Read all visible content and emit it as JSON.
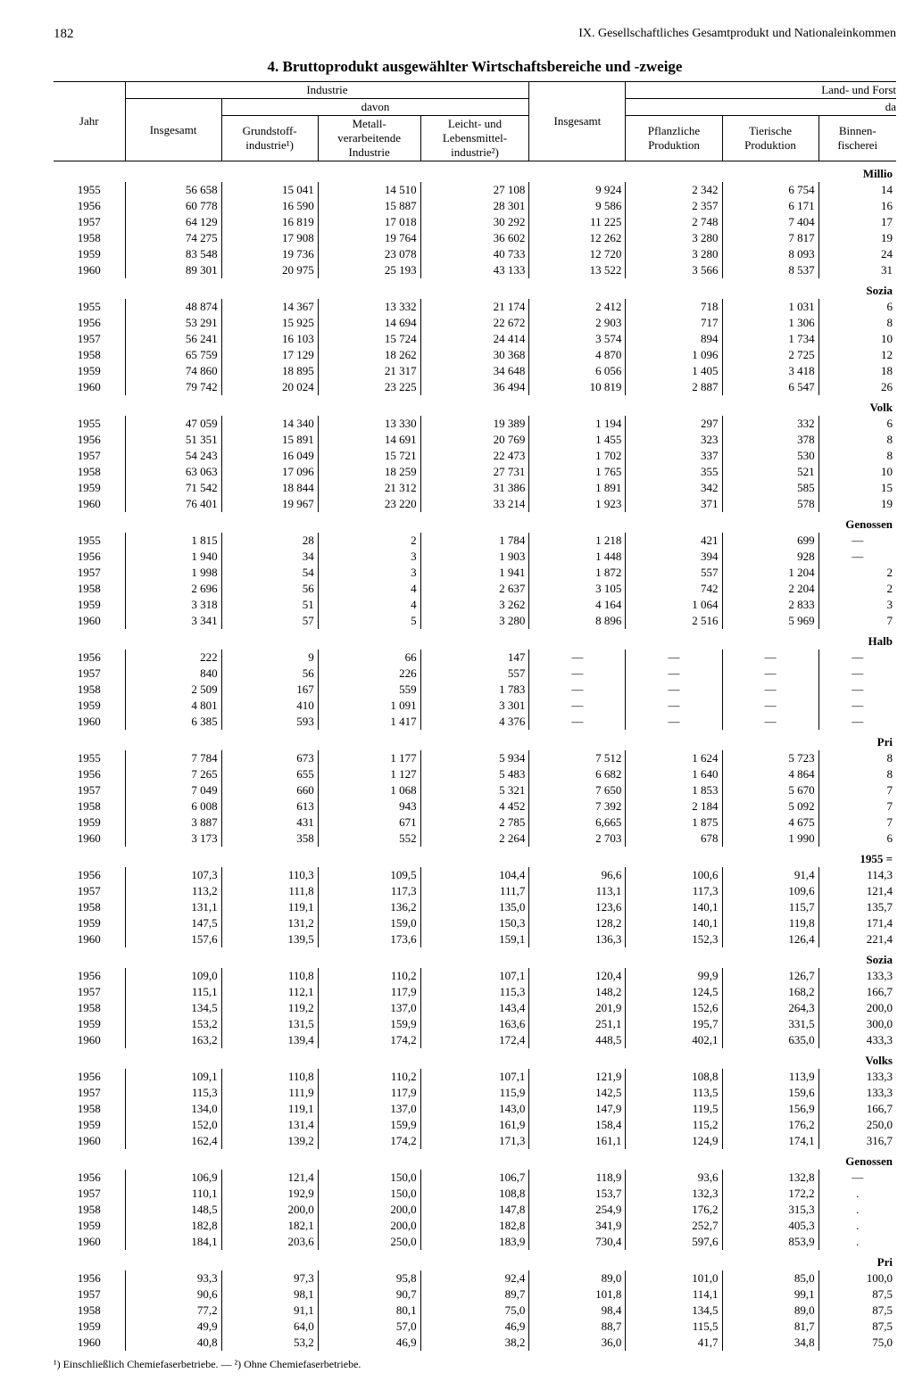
{
  "page_number": "182",
  "header_chapter": "IX. Gesellschaftliches Gesamtprodukt und Nationaleinkommen",
  "title": "4. Bruttoprodukt ausgewählter Wirtschaftsbereiche und -zweige",
  "footnote": "¹) Einschließlich Chemiefaserbetriebe. — ²) Ohne Chemiefaserbetriebe.",
  "col_headers": {
    "jahr": "Jahr",
    "industrie": "Industrie",
    "davon": "davon",
    "insgesamt": "Insgesamt",
    "grundstoff": "Grundstoff-\nindustrie¹)",
    "metall": "Metall-\nverarbeitende\nIndustrie",
    "leicht": "Leicht- und\nLebensmittel-\nindustrie²)",
    "land_forst": "Land- und Forst",
    "da": "da",
    "pflanzliche": "Pflanzliche\nProduktion",
    "tierische": "Tierische\nProduktion",
    "binnen": "Binnen-\nfischerei"
  },
  "section_right": {
    "millio": "Millio",
    "sozia": "Sozia",
    "volk": "Volk",
    "genossen": "Genossen",
    "halb": "Halb",
    "pri": "Pri",
    "base1955": "1955 =",
    "sozia2": "Sozia",
    "volks": "Volks",
    "genossen2": "Genossen",
    "pri2": "Pri"
  },
  "blocks": [
    {
      "label": "millio",
      "rows": [
        [
          "1955",
          "56 658",
          "15 041",
          "14 510",
          "27 108",
          "9 924",
          "2 342",
          "6 754",
          "14"
        ],
        [
          "1956",
          "60 778",
          "16 590",
          "15 887",
          "28 301",
          "9 586",
          "2 357",
          "6 171",
          "16"
        ],
        [
          "1957",
          "64 129",
          "16 819",
          "17 018",
          "30 292",
          "11 225",
          "2 748",
          "7 404",
          "17"
        ],
        [
          "1958",
          "74 275",
          "17 908",
          "19 764",
          "36 602",
          "12 262",
          "3 280",
          "7 817",
          "19"
        ],
        [
          "1959",
          "83 548",
          "19 736",
          "23 078",
          "40 733",
          "12 720",
          "3 280",
          "8 093",
          "24"
        ],
        [
          "1960",
          "89 301",
          "20 975",
          "25 193",
          "43 133",
          "13 522",
          "3 566",
          "8 537",
          "31"
        ]
      ]
    },
    {
      "label": "sozia",
      "rows": [
        [
          "1955",
          "48 874",
          "14 367",
          "13 332",
          "21 174",
          "2 412",
          "718",
          "1 031",
          "6"
        ],
        [
          "1956",
          "53 291",
          "15 925",
          "14 694",
          "22 672",
          "2 903",
          "717",
          "1 306",
          "8"
        ],
        [
          "1957",
          "56 241",
          "16 103",
          "15 724",
          "24 414",
          "3 574",
          "894",
          "1 734",
          "10"
        ],
        [
          "1958",
          "65 759",
          "17 129",
          "18 262",
          "30 368",
          "4 870",
          "1 096",
          "2 725",
          "12"
        ],
        [
          "1959",
          "74 860",
          "18 895",
          "21 317",
          "34 648",
          "6 056",
          "1 405",
          "3 418",
          "18"
        ],
        [
          "1960",
          "79 742",
          "20 024",
          "23 225",
          "36 494",
          "10 819",
          "2 887",
          "6 547",
          "26"
        ]
      ]
    },
    {
      "label": "volk",
      "rows": [
        [
          "1955",
          "47 059",
          "14 340",
          "13 330",
          "19 389",
          "1 194",
          "297",
          "332",
          "6"
        ],
        [
          "1956",
          "51 351",
          "15 891",
          "14 691",
          "20 769",
          "1 455",
          "323",
          "378",
          "8"
        ],
        [
          "1957",
          "54 243",
          "16 049",
          "15 721",
          "22 473",
          "1 702",
          "337",
          "530",
          "8"
        ],
        [
          "1958",
          "63 063",
          "17 096",
          "18 259",
          "27 731",
          "1 765",
          "355",
          "521",
          "10"
        ],
        [
          "1959",
          "71 542",
          "18 844",
          "21 312",
          "31 386",
          "1 891",
          "342",
          "585",
          "15"
        ],
        [
          "1960",
          "76 401",
          "19 967",
          "23 220",
          "33 214",
          "1 923",
          "371",
          "578",
          "19"
        ]
      ]
    },
    {
      "label": "genossen",
      "rows": [
        [
          "1955",
          "1 815",
          "28",
          "2",
          "1 784",
          "1 218",
          "421",
          "699",
          "—"
        ],
        [
          "1956",
          "1 940",
          "34",
          "3",
          "1 903",
          "1 448",
          "394",
          "928",
          "—"
        ],
        [
          "1957",
          "1 998",
          "54",
          "3",
          "1 941",
          "1 872",
          "557",
          "1 204",
          "2"
        ],
        [
          "1958",
          "2 696",
          "56",
          "4",
          "2 637",
          "3 105",
          "742",
          "2 204",
          "2"
        ],
        [
          "1959",
          "3 318",
          "51",
          "4",
          "3 262",
          "4 164",
          "1 064",
          "2 833",
          "3"
        ],
        [
          "1960",
          "3 341",
          "57",
          "5",
          "3 280",
          "8 896",
          "2 516",
          "5 969",
          "7"
        ]
      ]
    },
    {
      "label": "halb",
      "rows": [
        [
          "1956",
          "222",
          "9",
          "66",
          "147",
          "—",
          "—",
          "—",
          "—"
        ],
        [
          "1957",
          "840",
          "56",
          "226",
          "557",
          "—",
          "—",
          "—",
          "—"
        ],
        [
          "1958",
          "2 509",
          "167",
          "559",
          "1 783",
          "—",
          "—",
          "—",
          "—"
        ],
        [
          "1959",
          "4 801",
          "410",
          "1 091",
          "3 301",
          "—",
          "—",
          "—",
          "—"
        ],
        [
          "1960",
          "6 385",
          "593",
          "1 417",
          "4 376",
          "—",
          "—",
          "—",
          "—"
        ]
      ]
    },
    {
      "label": "pri",
      "rows": [
        [
          "1955",
          "7 784",
          "673",
          "1 177",
          "5 934",
          "7 512",
          "1 624",
          "5 723",
          "8"
        ],
        [
          "1956",
          "7 265",
          "655",
          "1 127",
          "5 483",
          "6 682",
          "1 640",
          "4 864",
          "8"
        ],
        [
          "1957",
          "7 049",
          "660",
          "1 068",
          "5 321",
          "7 650",
          "1 853",
          "5 670",
          "7"
        ],
        [
          "1958",
          "6 008",
          "613",
          "943",
          "4 452",
          "7 392",
          "2 184",
          "5 092",
          "7"
        ],
        [
          "1959",
          "3 887",
          "431",
          "671",
          "2 785",
          "6,665",
          "1 875",
          "4 675",
          "7"
        ],
        [
          "1960",
          "3 173",
          "358",
          "552",
          "2 264",
          "2 703",
          "678",
          "1 990",
          "6"
        ]
      ]
    },
    {
      "label": "base1955",
      "rows": [
        [
          "1956",
          "107,3",
          "110,3",
          "109,5",
          "104,4",
          "96,6",
          "100,6",
          "91,4",
          "114,3"
        ],
        [
          "1957",
          "113,2",
          "111,8",
          "117,3",
          "111,7",
          "113,1",
          "117,3",
          "109,6",
          "121,4"
        ],
        [
          "1958",
          "131,1",
          "119,1",
          "136,2",
          "135,0",
          "123,6",
          "140,1",
          "115,7",
          "135,7"
        ],
        [
          "1959",
          "147,5",
          "131,2",
          "159,0",
          "150,3",
          "128,2",
          "140,1",
          "119,8",
          "171,4"
        ],
        [
          "1960",
          "157,6",
          "139,5",
          "173,6",
          "159,1",
          "136,3",
          "152,3",
          "126,4",
          "221,4"
        ]
      ]
    },
    {
      "label": "sozia2",
      "rows": [
        [
          "1956",
          "109,0",
          "110,8",
          "110,2",
          "107,1",
          "120,4",
          "99,9",
          "126,7",
          "133,3"
        ],
        [
          "1957",
          "115,1",
          "112,1",
          "117,9",
          "115,3",
          "148,2",
          "124,5",
          "168,2",
          "166,7"
        ],
        [
          "1958",
          "134,5",
          "119,2",
          "137,0",
          "143,4",
          "201,9",
          "152,6",
          "264,3",
          "200,0"
        ],
        [
          "1959",
          "153,2",
          "131,5",
          "159,9",
          "163,6",
          "251,1",
          "195,7",
          "331,5",
          "300,0"
        ],
        [
          "1960",
          "163,2",
          "139,4",
          "174,2",
          "172,4",
          "448,5",
          "402,1",
          "635,0",
          "433,3"
        ]
      ]
    },
    {
      "label": "volks",
      "rows": [
        [
          "1956",
          "109,1",
          "110,8",
          "110,2",
          "107,1",
          "121,9",
          "108,8",
          "113,9",
          "133,3"
        ],
        [
          "1957",
          "115,3",
          "111,9",
          "117,9",
          "115,9",
          "142,5",
          "113,5",
          "159,6",
          "133,3"
        ],
        [
          "1958",
          "134,0",
          "119,1",
          "137,0",
          "143,0",
          "147,9",
          "119,5",
          "156,9",
          "166,7"
        ],
        [
          "1959",
          "152,0",
          "131,4",
          "159,9",
          "161,9",
          "158,4",
          "115,2",
          "176,2",
          "250,0"
        ],
        [
          "1960",
          "162,4",
          "139,2",
          "174,2",
          "171,3",
          "161,1",
          "124,9",
          "174,1",
          "316,7"
        ]
      ]
    },
    {
      "label": "genossen2",
      "rows": [
        [
          "1956",
          "106,9",
          "121,4",
          "150,0",
          "106,7",
          "118,9",
          "93,6",
          "132,8",
          "—"
        ],
        [
          "1957",
          "110,1",
          "192,9",
          "150,0",
          "108,8",
          "153,7",
          "132,3",
          "172,2",
          "."
        ],
        [
          "1958",
          "148,5",
          "200,0",
          "200,0",
          "147,8",
          "254,9",
          "176,2",
          "315,3",
          "."
        ],
        [
          "1959",
          "182,8",
          "182,1",
          "200,0",
          "182,8",
          "341,9",
          "252,7",
          "405,3",
          "."
        ],
        [
          "1960",
          "184,1",
          "203,6",
          "250,0",
          "183,9",
          "730,4",
          "597,6",
          "853,9",
          "."
        ]
      ]
    },
    {
      "label": "pri2",
      "rows": [
        [
          "1956",
          "93,3",
          "97,3",
          "95,8",
          "92,4",
          "89,0",
          "101,0",
          "85,0",
          "100,0"
        ],
        [
          "1957",
          "90,6",
          "98,1",
          "90,7",
          "89,7",
          "101,8",
          "114,1",
          "99,1",
          "87,5"
        ],
        [
          "1958",
          "77,2",
          "91,1",
          "80,1",
          "75,0",
          "98,4",
          "134,5",
          "89,0",
          "87,5"
        ],
        [
          "1959",
          "49,9",
          "64,0",
          "57,0",
          "46,9",
          "88,7",
          "115,5",
          "81,7",
          "87,5"
        ],
        [
          "1960",
          "40,8",
          "53,2",
          "46,9",
          "38,2",
          "36,0",
          "41,7",
          "34,8",
          "75,0"
        ]
      ]
    }
  ]
}
